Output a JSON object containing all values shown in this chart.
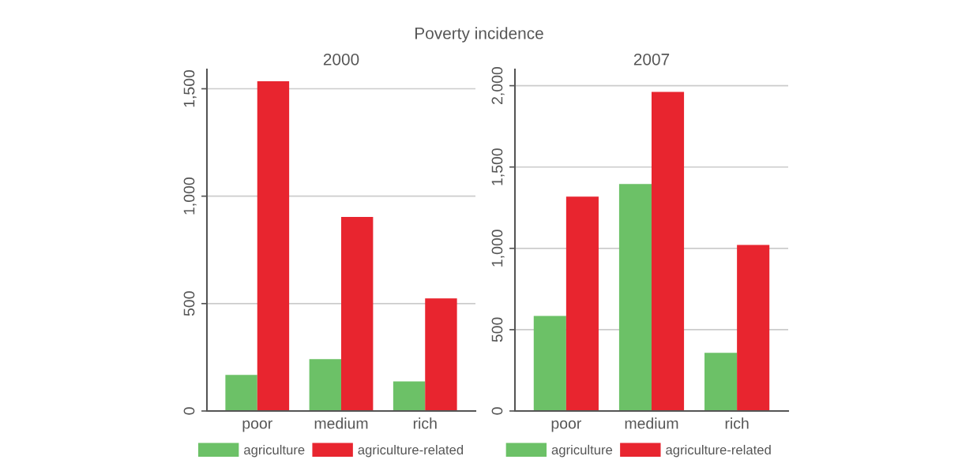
{
  "chart_data": [
    {
      "type": "bar",
      "title": "2000",
      "annotations": [
        "Poverty incidence"
      ],
      "categories": [
        "poor",
        "medium",
        "rich"
      ],
      "series": [
        {
          "name": "agriculture",
          "color": "#6cc167",
          "values": [
            168,
            241,
            138
          ]
        },
        {
          "name": "agriculture-related",
          "color": "#e8252f",
          "values": [
            1535,
            903,
            524
          ]
        }
      ],
      "ylim": [
        0,
        1590
      ],
      "yticks": [
        0,
        {
          "value": 500,
          "label": "500"
        },
        {
          "value": 1000,
          "label": "1,000"
        },
        {
          "value": 1500,
          "label": "1,500"
        }
      ],
      "grid": "y",
      "legend": "bottom"
    },
    {
      "type": "bar",
      "title": "2007",
      "categories": [
        "poor",
        "medium",
        "rich"
      ],
      "series": [
        {
          "name": "agriculture",
          "color": "#6cc167",
          "values": [
            584,
            1395,
            358
          ]
        },
        {
          "name": "agriculture-related",
          "color": "#e8252f",
          "values": [
            1318,
            1962,
            1021
          ]
        }
      ],
      "ylim": [
        0,
        2100
      ],
      "yticks": [
        0,
        {
          "value": 500,
          "label": "500"
        },
        {
          "value": 1000,
          "label": "1,000"
        },
        {
          "value": 1500,
          "label": "1,500"
        },
        {
          "value": 2000,
          "label": "2,000"
        }
      ],
      "grid": "y",
      "legend": "bottom"
    }
  ]
}
